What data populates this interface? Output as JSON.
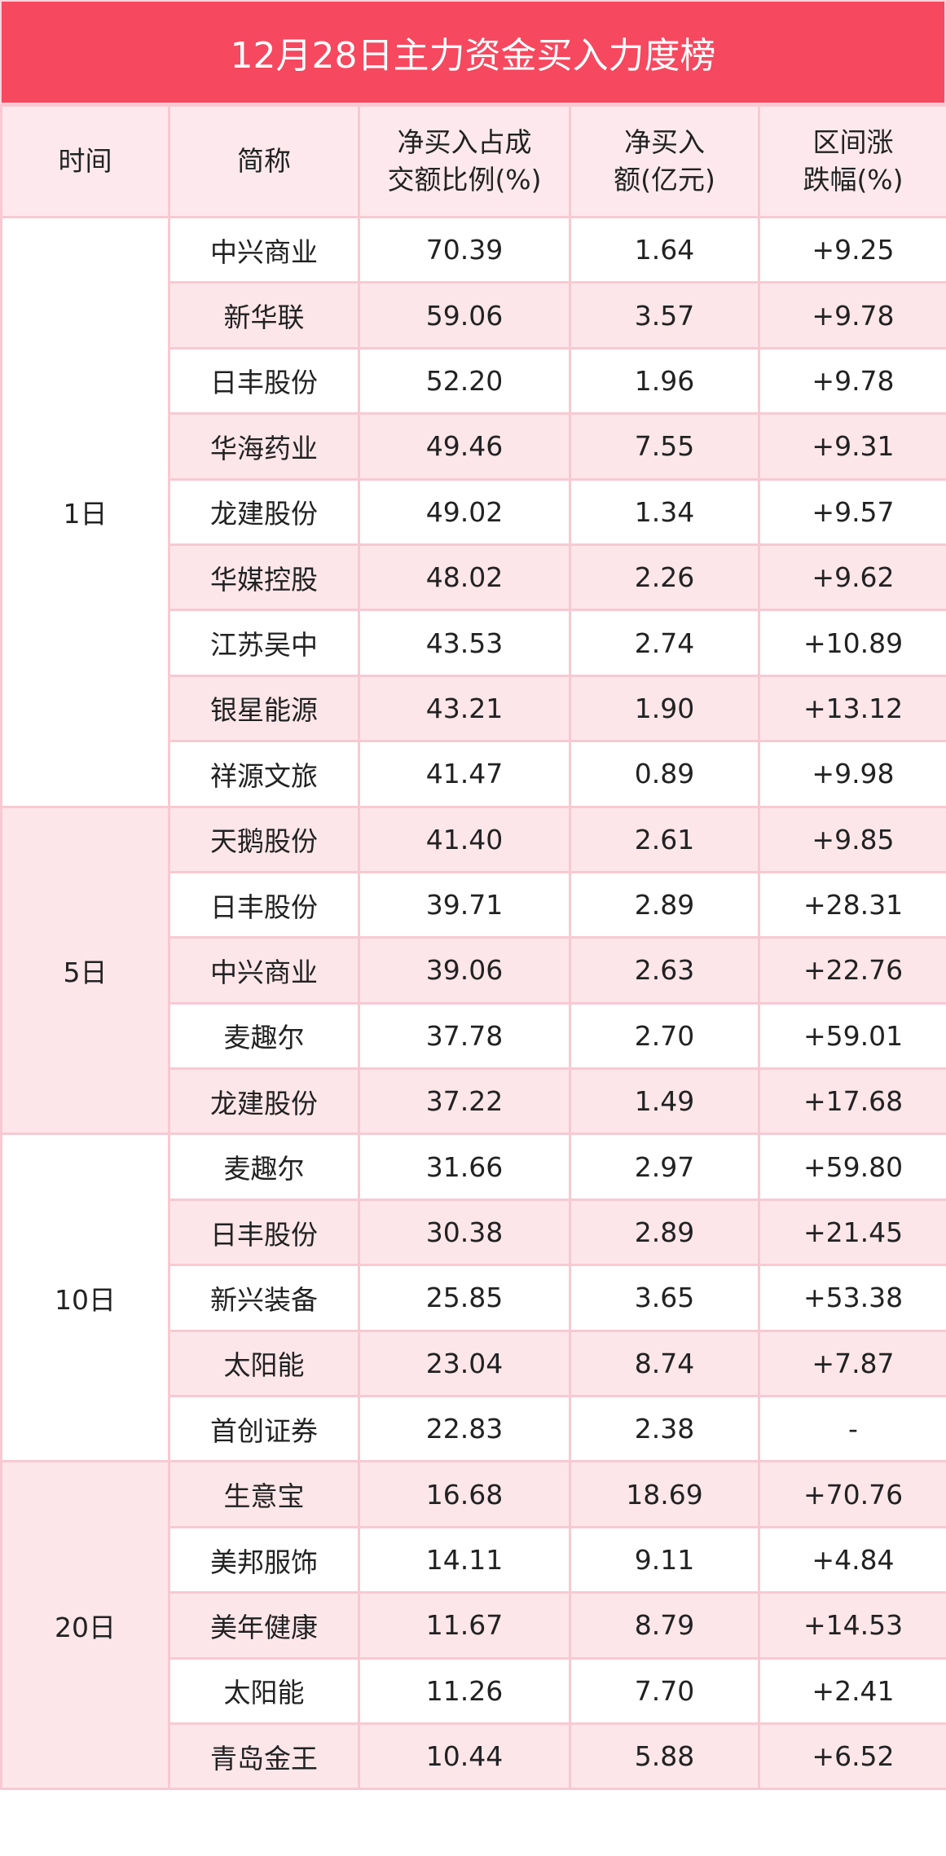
{
  "title": "12月28日主力资金买入力度榜",
  "colors": {
    "title_bg": "#f6485f",
    "row_alt": "#fde6ea",
    "border": "#f8c9d2"
  },
  "headers": [
    "时间",
    "简称",
    "净买入占成\n交额比例(%)",
    "净买入\n额(亿元)",
    "区间涨\n跌幅(%)"
  ],
  "groups": [
    {
      "period": "1日",
      "rows": [
        [
          "中兴商业",
          "70.39",
          "1.64",
          "+9.25"
        ],
        [
          "新华联",
          "59.06",
          "3.57",
          "+9.78"
        ],
        [
          "日丰股份",
          "52.20",
          "1.96",
          "+9.78"
        ],
        [
          "华海药业",
          "49.46",
          "7.55",
          "+9.31"
        ],
        [
          "龙建股份",
          "49.02",
          "1.34",
          "+9.57"
        ],
        [
          "华媒控股",
          "48.02",
          "2.26",
          "+9.62"
        ],
        [
          "江苏吴中",
          "43.53",
          "2.74",
          "+10.89"
        ],
        [
          "银星能源",
          "43.21",
          "1.90",
          "+13.12"
        ],
        [
          "祥源文旅",
          "41.47",
          "0.89",
          "+9.98"
        ]
      ]
    },
    {
      "period": "5日",
      "rows": [
        [
          "天鹅股份",
          "41.40",
          "2.61",
          "+9.85"
        ],
        [
          "日丰股份",
          "39.71",
          "2.89",
          "+28.31"
        ],
        [
          "中兴商业",
          "39.06",
          "2.63",
          "+22.76"
        ],
        [
          "麦趣尔",
          "37.78",
          "2.70",
          "+59.01"
        ],
        [
          "龙建股份",
          "37.22",
          "1.49",
          "+17.68"
        ]
      ]
    },
    {
      "period": "10日",
      "rows": [
        [
          "麦趣尔",
          "31.66",
          "2.97",
          "+59.80"
        ],
        [
          "日丰股份",
          "30.38",
          "2.89",
          "+21.45"
        ],
        [
          "新兴装备",
          "25.85",
          "3.65",
          "+53.38"
        ],
        [
          "太阳能",
          "23.04",
          "8.74",
          "+7.87"
        ],
        [
          "首创证券",
          "22.83",
          "2.38",
          "-"
        ]
      ]
    },
    {
      "period": "20日",
      "rows": [
        [
          "生意宝",
          "16.68",
          "18.69",
          "+70.76"
        ],
        [
          "美邦服饰",
          "14.11",
          "9.11",
          "+4.84"
        ],
        [
          "美年健康",
          "11.67",
          "8.79",
          "+14.53"
        ],
        [
          "太阳能",
          "11.26",
          "7.70",
          "+2.41"
        ],
        [
          "青岛金王",
          "10.44",
          "5.88",
          "+6.52"
        ]
      ]
    }
  ]
}
